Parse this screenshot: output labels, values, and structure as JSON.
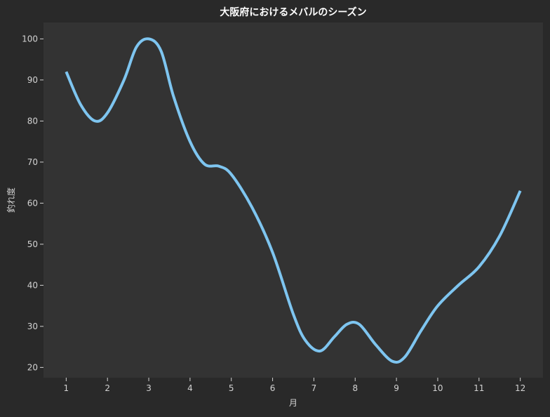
{
  "chart_data": {
    "type": "line",
    "title": "大阪府におけるメバルのシーズン",
    "xlabel": "月",
    "ylabel": "釣れ度",
    "x": [
      1,
      2,
      3,
      4,
      5,
      6,
      7,
      8,
      9,
      10,
      11,
      12
    ],
    "xlim": [
      0.45,
      12.55
    ],
    "ylim": [
      17.5,
      104
    ],
    "yticks": [
      20,
      30,
      40,
      50,
      60,
      70,
      80,
      90,
      100
    ],
    "grid": false,
    "legend": "none",
    "series": [
      {
        "color": "#7ec5f0",
        "points": [
          [
            1.0,
            92
          ],
          [
            1.35,
            84
          ],
          [
            1.7,
            80
          ],
          [
            2.0,
            82
          ],
          [
            2.4,
            90
          ],
          [
            2.7,
            98
          ],
          [
            3.0,
            100
          ],
          [
            3.3,
            97
          ],
          [
            3.6,
            86
          ],
          [
            4.0,
            75
          ],
          [
            4.35,
            69.5
          ],
          [
            4.7,
            69
          ],
          [
            5.0,
            67
          ],
          [
            5.5,
            59
          ],
          [
            6.0,
            48
          ],
          [
            6.5,
            33
          ],
          [
            6.8,
            26.5
          ],
          [
            7.15,
            24
          ],
          [
            7.5,
            27.5
          ],
          [
            7.8,
            30.5
          ],
          [
            8.1,
            30.5
          ],
          [
            8.5,
            25.5
          ],
          [
            8.9,
            21.5
          ],
          [
            9.2,
            22.5
          ],
          [
            9.6,
            29
          ],
          [
            10.0,
            35
          ],
          [
            10.5,
            40
          ],
          [
            11.0,
            44.5
          ],
          [
            11.5,
            52
          ],
          [
            12.0,
            63
          ]
        ]
      }
    ],
    "colors": {
      "background": "#292929",
      "plot_background": "#333333",
      "text": "#d2d2d2",
      "title": "#ffffff"
    }
  }
}
